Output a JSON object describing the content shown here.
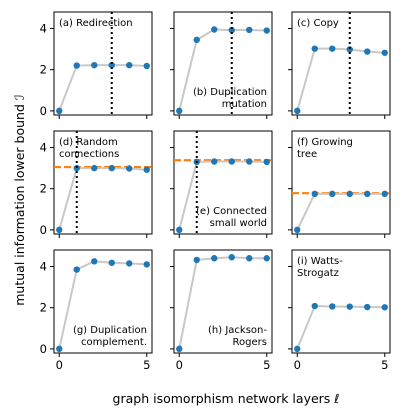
{
  "colors": {
    "line": "#c8c8c8",
    "point": "#1f77b4",
    "dash": "#ff7f0e",
    "vline": "#000000",
    "title_bg": "#ffffff"
  },
  "chart_data": {
    "type": "line",
    "xlabel": "graph isomorphism network layers ℓ",
    "ylabel": "mutual information lower bound ℐ",
    "xlim": [
      -0.3,
      5.3
    ],
    "ylim": [
      -0.2,
      4.8
    ],
    "xticks": [
      0,
      5
    ],
    "yticks": [
      0,
      2,
      4
    ],
    "grid": false,
    "x": [
      0,
      1,
      2,
      3,
      4,
      5
    ],
    "panels": [
      {
        "title": [
          "(a) Redirection"
        ],
        "title_anchor": "top-left",
        "values": [
          0,
          2.2,
          2.22,
          2.22,
          2.22,
          2.18
        ],
        "vline": 3,
        "hline": null
      },
      {
        "title": [
          "(b) Duplication",
          "mutation"
        ],
        "title_anchor": "bottom-right",
        "values": [
          0,
          3.45,
          3.95,
          3.92,
          3.93,
          3.9
        ],
        "vline": 3,
        "hline": null
      },
      {
        "title": [
          "(c) Copy"
        ],
        "title_anchor": "top-left",
        "values": [
          0,
          3.02,
          3.02,
          2.98,
          2.88,
          2.82
        ],
        "vline": 3,
        "hline": null
      },
      {
        "title": [
          "(d) Random",
          "connections"
        ],
        "title_anchor": "top-left",
        "values": [
          0,
          3.0,
          3.0,
          3.0,
          2.98,
          2.92
        ],
        "vline": 1,
        "hline": 3.05
      },
      {
        "title": [
          "(e) Connected",
          "small world"
        ],
        "title_anchor": "bottom-right",
        "values": [
          0,
          3.3,
          3.32,
          3.32,
          3.32,
          3.3
        ],
        "vline": 1,
        "hline": 3.38
      },
      {
        "title": [
          "(f) Growing",
          "tree"
        ],
        "title_anchor": "top-left",
        "values": [
          0,
          1.75,
          1.75,
          1.75,
          1.75,
          1.75
        ],
        "vline": null,
        "hline": 1.78
      },
      {
        "title": [
          "(g) Duplication",
          "complement."
        ],
        "title_anchor": "bottom-right",
        "values": [
          0,
          3.85,
          4.25,
          4.18,
          4.15,
          4.1
        ],
        "vline": null,
        "hline": null
      },
      {
        "title": [
          "(h) Jackson-",
          "Rogers"
        ],
        "title_anchor": "bottom-right",
        "values": [
          0,
          4.32,
          4.4,
          4.45,
          4.4,
          4.4
        ],
        "vline": null,
        "hline": null
      },
      {
        "title": [
          "(i) Watts-",
          "Strogatz"
        ],
        "title_anchor": "top-left",
        "values": [
          0,
          2.08,
          2.06,
          2.05,
          2.03,
          2.02
        ],
        "vline": null,
        "hline": null
      }
    ]
  }
}
